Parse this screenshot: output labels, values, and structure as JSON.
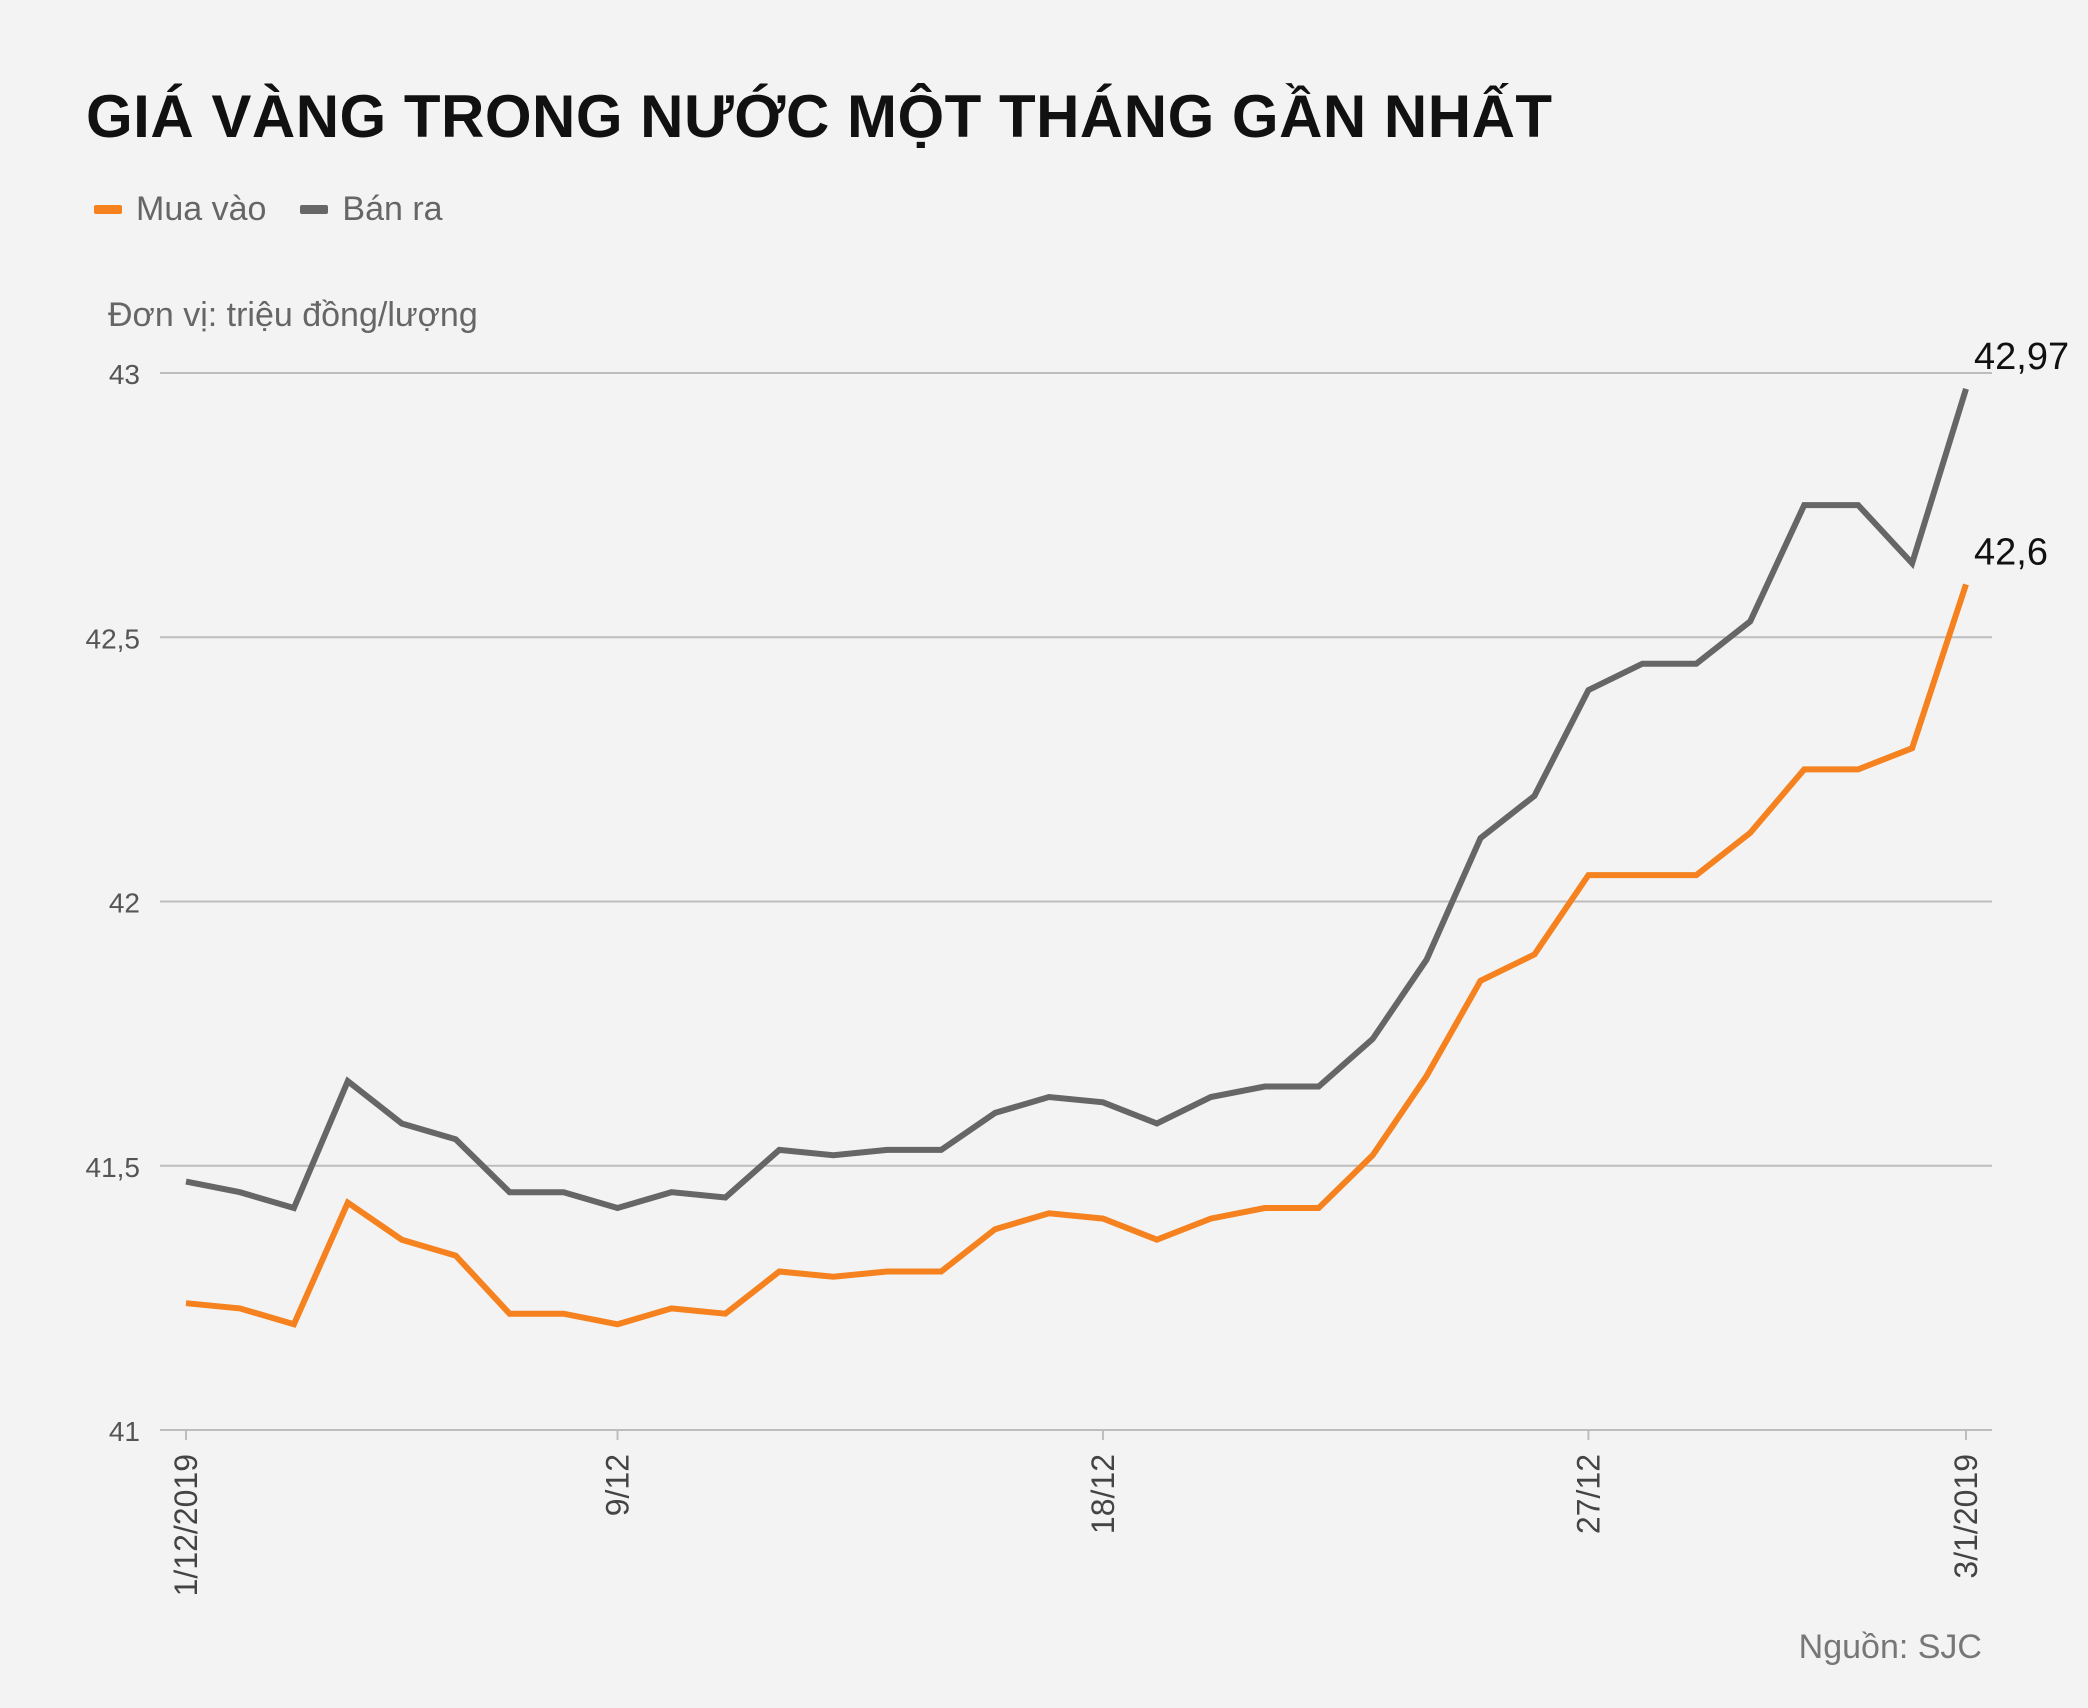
{
  "title": "GIÁ VÀNG TRONG NƯỚC MỘT THÁNG GẦN NHẤT",
  "unit_note": "Đơn vị: triệu đồng/lượng",
  "source": "Nguồn: SJC",
  "colors": {
    "mua_vao": "#f5821f",
    "ban_ra": "#666666",
    "grid": "#bdbdbd",
    "background": "#f3f3f3"
  },
  "chart_data": {
    "type": "line",
    "title": "GIÁ VÀNG TRONG NƯỚC MỘT THÁNG GẦN NHẤT",
    "ylabel": "Đơn vị: triệu đồng/lượng",
    "xlabel": "",
    "ylim": [
      41,
      43
    ],
    "yticks": [
      41,
      41.5,
      42,
      42.5,
      43
    ],
    "ytick_labels": [
      "41",
      "41,5",
      "42",
      "42,5",
      "43"
    ],
    "xtick_labels": [
      {
        "index": 0,
        "label": "1/12/2019"
      },
      {
        "index": 8,
        "label": "9/12"
      },
      {
        "index": 17,
        "label": "18/12"
      },
      {
        "index": 26,
        "label": "27/12"
      },
      {
        "index": 33,
        "label": "3/1/2019"
      }
    ],
    "grid": true,
    "legend_position": "top-left",
    "series": [
      {
        "name": "Mua vào",
        "color": "#f5821f",
        "values": [
          41.24,
          41.23,
          41.2,
          41.43,
          41.36,
          41.33,
          41.22,
          41.22,
          41.2,
          41.23,
          41.22,
          41.3,
          41.29,
          41.3,
          41.3,
          41.38,
          41.41,
          41.4,
          41.36,
          41.4,
          41.42,
          41.42,
          41.52,
          41.67,
          41.85,
          41.9,
          42.05,
          42.05,
          42.05,
          42.13,
          42.25,
          42.25,
          42.29,
          42.6
        ],
        "end_label": "42,6"
      },
      {
        "name": "Bán ra",
        "color": "#666666",
        "values": [
          41.47,
          41.45,
          41.42,
          41.66,
          41.58,
          41.55,
          41.45,
          41.45,
          41.42,
          41.45,
          41.44,
          41.53,
          41.52,
          41.53,
          41.53,
          41.6,
          41.63,
          41.62,
          41.58,
          41.63,
          41.65,
          41.65,
          41.74,
          41.89,
          42.12,
          42.2,
          42.4,
          42.45,
          42.45,
          42.53,
          42.75,
          42.75,
          42.64,
          42.97
        ],
        "end_label": "42,97"
      }
    ]
  }
}
